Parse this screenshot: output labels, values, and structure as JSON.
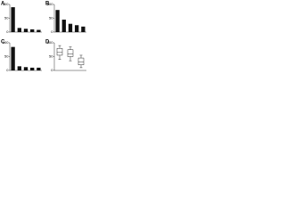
{
  "chart_data": [
    {
      "type": "bar",
      "title": "A",
      "color": "#111111",
      "categories": [
        null,
        null,
        null,
        null,
        null
      ],
      "values": [
        90,
        15,
        12,
        10,
        8
      ],
      "ylim": [
        0,
        100
      ],
      "yticks": [
        0,
        50,
        100
      ]
    },
    {
      "type": "bar",
      "title": "B",
      "color": "#111111",
      "categories": [
        null,
        null,
        null,
        null,
        null
      ],
      "values": [
        80,
        45,
        30,
        25,
        20
      ],
      "ylim": [
        0,
        100
      ],
      "yticks": [
        0,
        50,
        100
      ]
    },
    {
      "type": "bar",
      "title": "C",
      "color": "#111111",
      "categories": [
        null,
        null,
        null,
        null,
        null
      ],
      "values": [
        85,
        15,
        12,
        10,
        10
      ],
      "ylim": [
        0,
        100
      ],
      "yticks": [
        0,
        50,
        100
      ]
    },
    {
      "type": "box",
      "title": "D",
      "color": "#ffffff",
      "categories": [
        null,
        null,
        null
      ],
      "boxes": [
        {
          "min": 40,
          "q1": 55,
          "median": 65,
          "q3": 80,
          "max": 90
        },
        {
          "min": 35,
          "q1": 50,
          "median": 60,
          "q3": 75,
          "max": 85
        },
        {
          "min": 10,
          "q1": 20,
          "median": 30,
          "q3": 45,
          "max": 55
        }
      ],
      "ylim": [
        0,
        100
      ],
      "yticks": [
        0,
        50,
        100
      ]
    }
  ]
}
